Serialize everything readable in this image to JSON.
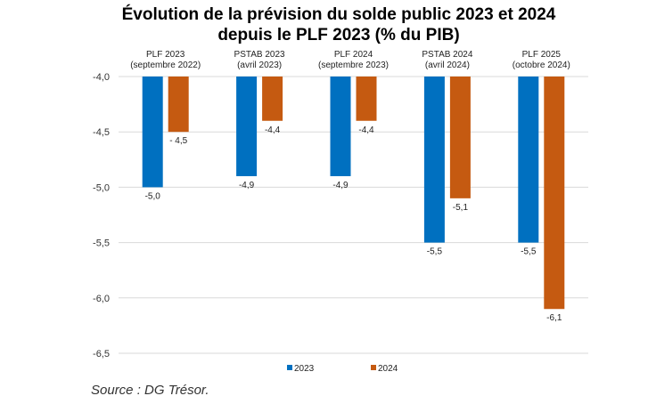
{
  "chart_data": {
    "type": "bar",
    "title_lines": [
      "Évolution de la prévision du solde public 2023 et 2024",
      "depuis le PLF 2023 (% du PIB)"
    ],
    "categories": [
      {
        "line1": "PLF 2023",
        "line2": "(septembre 2022)"
      },
      {
        "line1": "PSTAB 2023",
        "line2": "(avril 2023)"
      },
      {
        "line1": "PLF 2024",
        "line2": "(septembre 2023)"
      },
      {
        "line1": "PSTAB 2024",
        "line2": "(avril 2024)"
      },
      {
        "line1": "PLF 2025",
        "line2": "(octobre 2024)"
      }
    ],
    "series": [
      {
        "name": "2023",
        "color": "#0070C0",
        "values": [
          -5.0,
          -4.9,
          -4.9,
          -5.5,
          -5.5
        ],
        "labels": [
          "-5,0",
          "-4,9",
          "-4,9",
          "-5,5",
          "-5,5"
        ]
      },
      {
        "name": "2024",
        "color": "#C55A11",
        "values": [
          -4.5,
          -4.4,
          -4.4,
          -5.1,
          -6.1
        ],
        "labels": [
          "- 4,5",
          "-4,4",
          "-4,4",
          "-5,1",
          "-6,1"
        ]
      }
    ],
    "y_ticks": [
      "-4,0",
      "-4,5",
      "-5,0",
      "-5,5",
      "-6,0",
      "-6,5"
    ],
    "y_tick_values": [
      -4.0,
      -4.5,
      -5.0,
      -5.5,
      -6.0,
      -6.5
    ],
    "ylim": [
      -6.5,
      -4.0
    ],
    "gridlines": true,
    "legend_position": "bottom"
  },
  "source": "Source : DG Trésor."
}
